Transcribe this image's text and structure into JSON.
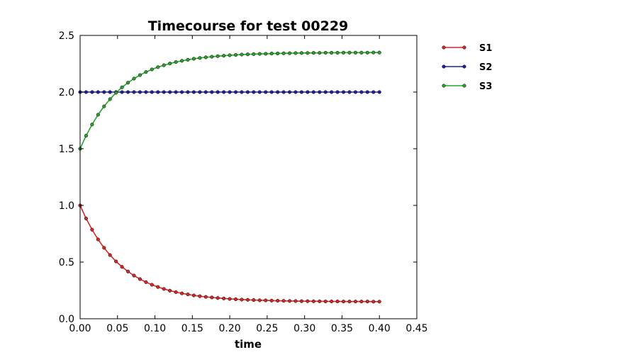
{
  "chart_data": {
    "type": "line",
    "title": "Timecourse for test 00229",
    "xlabel": "time",
    "ylabel": "",
    "xlim": [
      0.0,
      0.45
    ],
    "ylim": [
      0.0,
      2.5
    ],
    "xticks": [
      0.0,
      0.05,
      0.1,
      0.15,
      0.2,
      0.25,
      0.3,
      0.35,
      0.4,
      0.45
    ],
    "xtick_labels": [
      "0.00",
      "0.05",
      "0.10",
      "0.15",
      "0.20",
      "0.25",
      "0.30",
      "0.35",
      "0.40",
      "0.45"
    ],
    "yticks": [
      0.0,
      0.5,
      1.0,
      1.5,
      2.0,
      2.5
    ],
    "ytick_labels": [
      "0.0",
      "0.5",
      "1.0",
      "1.5",
      "2.0",
      "2.5"
    ],
    "grid": false,
    "legend_position": "outside-right",
    "x": [
      0.0,
      0.008,
      0.016,
      0.024,
      0.032,
      0.04,
      0.048,
      0.056,
      0.064,
      0.072,
      0.08,
      0.088,
      0.096,
      0.104,
      0.112,
      0.12,
      0.128,
      0.136,
      0.144,
      0.152,
      0.16,
      0.168,
      0.176,
      0.184,
      0.192,
      0.2,
      0.208,
      0.216,
      0.224,
      0.232,
      0.24,
      0.248,
      0.256,
      0.264,
      0.272,
      0.28,
      0.288,
      0.296,
      0.304,
      0.312,
      0.32,
      0.328,
      0.336,
      0.344,
      0.352,
      0.36,
      0.368,
      0.376,
      0.384,
      0.392,
      0.4
    ],
    "series": [
      {
        "name": "S1",
        "color": "#d62728",
        "values": [
          1.0,
          0.885,
          0.786,
          0.7,
          0.626,
          0.562,
          0.506,
          0.458,
          0.417,
          0.381,
          0.35,
          0.323,
          0.3,
          0.28,
          0.263,
          0.248,
          0.235,
          0.224,
          0.215,
          0.206,
          0.199,
          0.193,
          0.188,
          0.183,
          0.179,
          0.175,
          0.172,
          0.169,
          0.167,
          0.165,
          0.163,
          0.162,
          0.16,
          0.159,
          0.158,
          0.157,
          0.156,
          0.155,
          0.155,
          0.154,
          0.154,
          0.153,
          0.153,
          0.153,
          0.152,
          0.152,
          0.152,
          0.152,
          0.152,
          0.151,
          0.151
        ]
      },
      {
        "name": "S2",
        "color": "#1f1f9f",
        "values": [
          2.0,
          2.0,
          2.0,
          2.0,
          2.0,
          2.0,
          2.0,
          2.0,
          2.0,
          2.0,
          2.0,
          2.0,
          2.0,
          2.0,
          2.0,
          2.0,
          2.0,
          2.0,
          2.0,
          2.0,
          2.0,
          2.0,
          2.0,
          2.0,
          2.0,
          2.0,
          2.0,
          2.0,
          2.0,
          2.0,
          2.0,
          2.0,
          2.0,
          2.0,
          2.0,
          2.0,
          2.0,
          2.0,
          2.0,
          2.0,
          2.0,
          2.0,
          2.0,
          2.0,
          2.0,
          2.0,
          2.0,
          2.0,
          2.0,
          2.0,
          2.0
        ]
      },
      {
        "name": "S3",
        "color": "#2ca02c",
        "values": [
          1.5,
          1.615,
          1.714,
          1.8,
          1.874,
          1.938,
          1.994,
          2.042,
          2.083,
          2.119,
          2.15,
          2.177,
          2.2,
          2.22,
          2.237,
          2.252,
          2.265,
          2.276,
          2.285,
          2.294,
          2.301,
          2.307,
          2.312,
          2.317,
          2.321,
          2.325,
          2.328,
          2.331,
          2.333,
          2.335,
          2.337,
          2.338,
          2.34,
          2.341,
          2.342,
          2.343,
          2.344,
          2.345,
          2.345,
          2.346,
          2.346,
          2.347,
          2.347,
          2.347,
          2.348,
          2.348,
          2.348,
          2.348,
          2.348,
          2.349,
          2.349
        ]
      }
    ]
  }
}
